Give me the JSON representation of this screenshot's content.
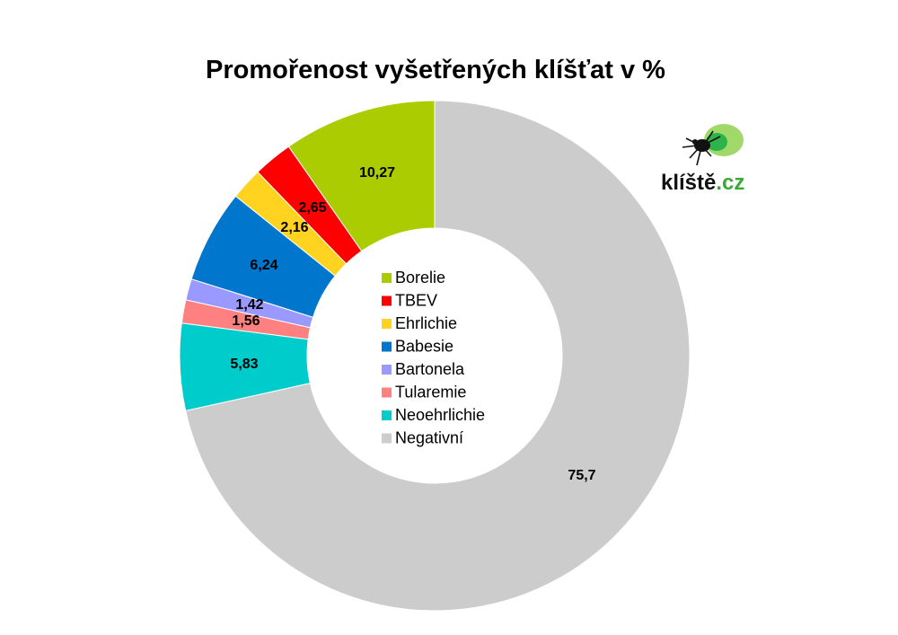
{
  "chart_data": {
    "type": "pie",
    "donut": true,
    "title": "Promořenost vyšetřených klíšťat v %",
    "start_angle": "12 o'clock",
    "direction": "counterclockwise",
    "slices": [
      {
        "label": "Borelie",
        "value": 10.27,
        "display": "10,27",
        "color": "#aacc00"
      },
      {
        "label": "TBEV",
        "value": 2.65,
        "display": "2,65",
        "color": "#ff0000"
      },
      {
        "label": "Ehrlichie",
        "value": 2.16,
        "display": "2,16",
        "color": "#ffd320"
      },
      {
        "label": "Babesie",
        "value": 6.24,
        "display": "6,24",
        "color": "#0077cc"
      },
      {
        "label": "Bartonela",
        "value": 1.42,
        "display": "1,42",
        "color": "#9999ff"
      },
      {
        "label": "Tularemie",
        "value": 1.56,
        "display": "1,56",
        "color": "#ff8080"
      },
      {
        "label": "Neoehrlichie",
        "value": 5.83,
        "display": "5,83",
        "color": "#00cccc"
      },
      {
        "label": "Negativní",
        "value": 75.7,
        "display": "75,7",
        "color": "#cccccc"
      }
    ],
    "legend_position": "center of donut"
  },
  "logo": {
    "name": "klíště",
    "tld": ".cz",
    "icon": "tick-icon"
  }
}
